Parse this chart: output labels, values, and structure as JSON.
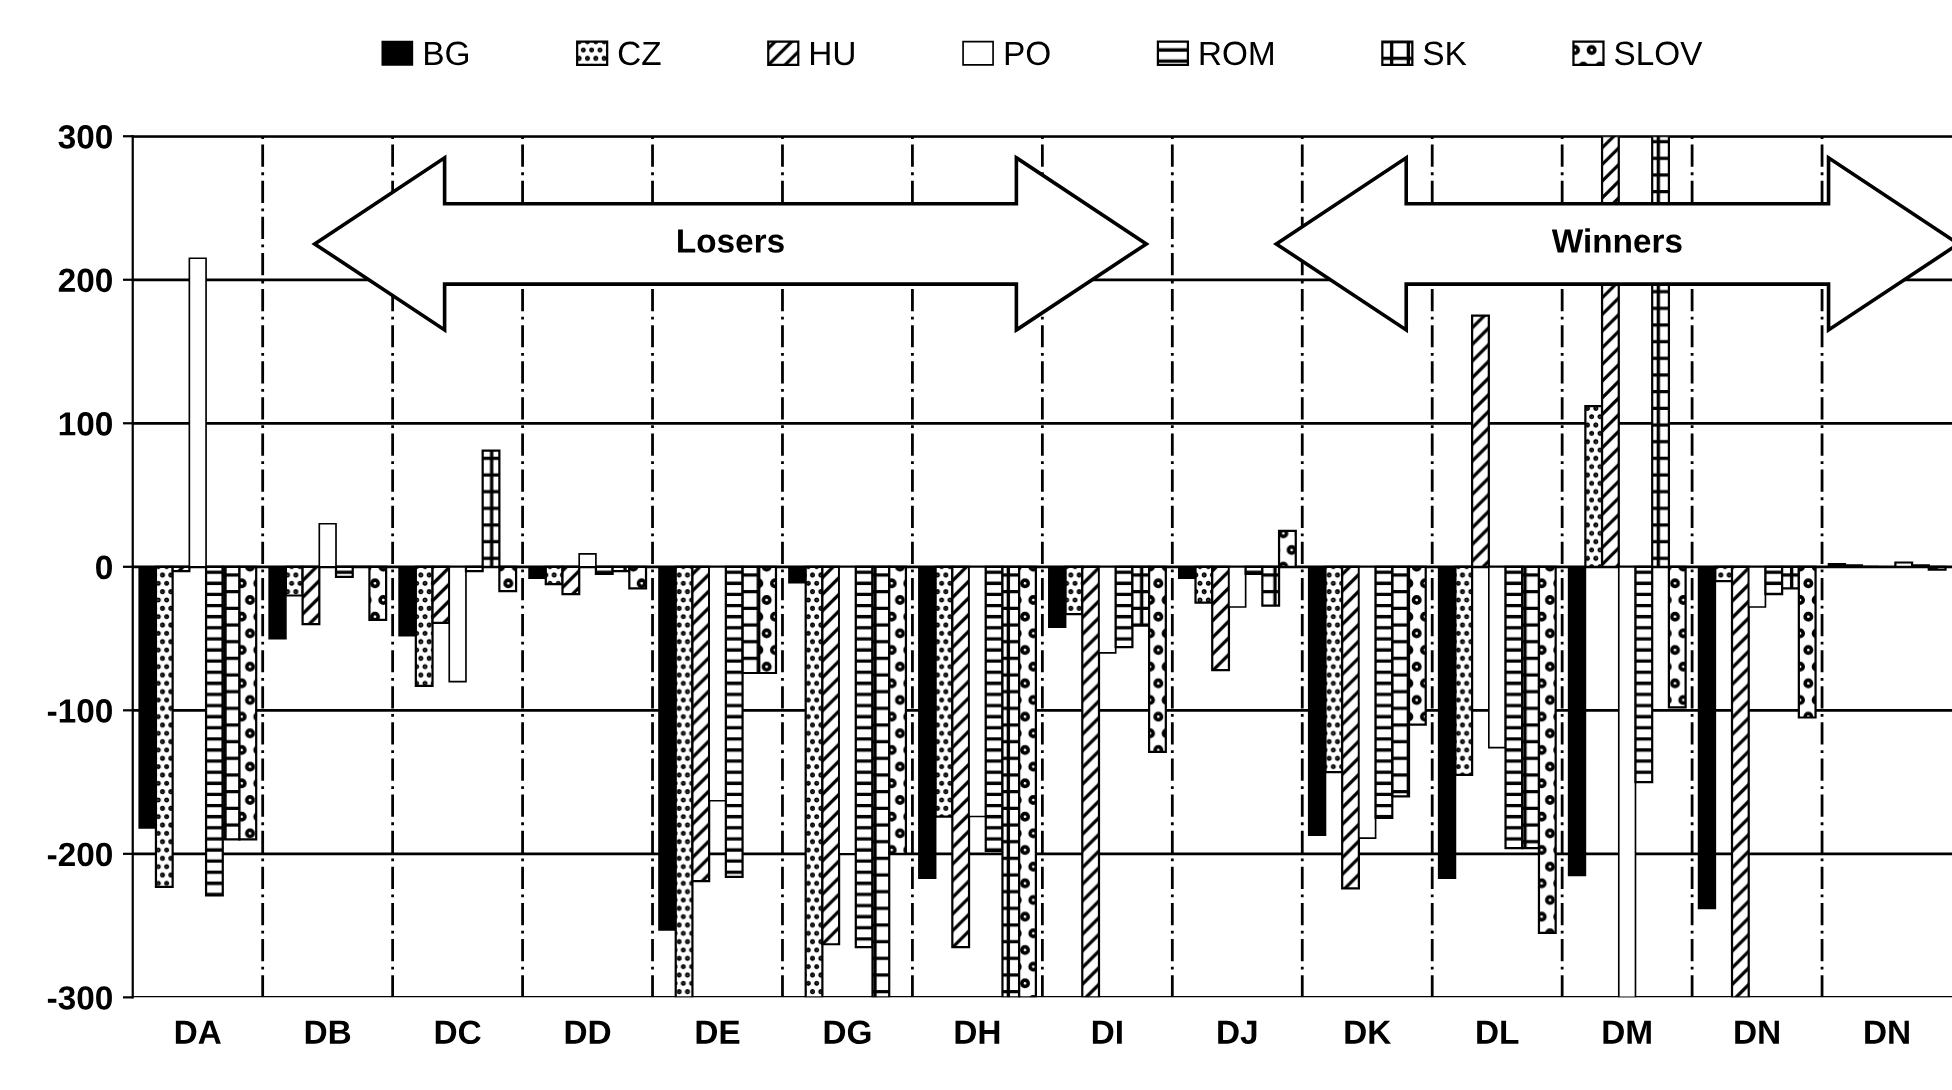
{
  "chart_data": {
    "type": "bar",
    "categories": [
      "DA",
      "DB",
      "DC",
      "DD",
      "DE",
      "DG",
      "DH",
      "DI",
      "DJ",
      "DK",
      "DL",
      "DM",
      "DN",
      "DN"
    ],
    "series": [
      {
        "name": "BG",
        "color": "#000000",
        "values": [
          -182,
          -50,
          -48,
          -8,
          -253,
          -11,
          -217,
          -42,
          -8,
          -187,
          -217,
          -215,
          -238,
          2
        ]
      },
      {
        "name": "CZ",
        "color": "#000000",
        "values": [
          -223,
          -20,
          -83,
          -12,
          -300,
          -300,
          -174,
          -33,
          -25,
          -143,
          -145,
          112,
          -10,
          1
        ]
      },
      {
        "name": "HU",
        "color": "#000000",
        "values": [
          -3,
          -40,
          -39,
          -19,
          -219,
          -263,
          -265,
          -300,
          -72,
          -224,
          175,
          300,
          -300,
          0
        ]
      },
      {
        "name": "PO",
        "color": "#ffffff",
        "values": [
          215,
          30,
          -80,
          9,
          -163,
          -200,
          -174,
          -60,
          -28,
          -189,
          -126,
          -300,
          -28,
          null
        ]
      },
      {
        "name": "ROM",
        "color": "#000000",
        "values": [
          -229,
          -7,
          -3,
          -5,
          -216,
          -265,
          -198,
          -56,
          -5,
          -175,
          -196,
          -150,
          -19,
          3
        ]
      },
      {
        "name": "SK",
        "color": "#000000",
        "values": [
          -190,
          0,
          81,
          -3,
          -74,
          -300,
          -300,
          -41,
          -27,
          -160,
          -196,
          300,
          -15,
          1
        ]
      },
      {
        "name": "SLOV",
        "color": "#000000",
        "values": [
          -190,
          -37,
          -17,
          -15,
          -74,
          -200,
          -300,
          -129,
          25,
          -110,
          -255,
          -98,
          -105,
          -2
        ]
      }
    ],
    "ylim": [
      -300,
      300
    ],
    "yticks": [
      -300,
      -200,
      -100,
      0,
      100,
      200,
      300
    ],
    "grid": true,
    "legend": "top",
    "annotations": [
      "Losers",
      "Winners"
    ]
  }
}
